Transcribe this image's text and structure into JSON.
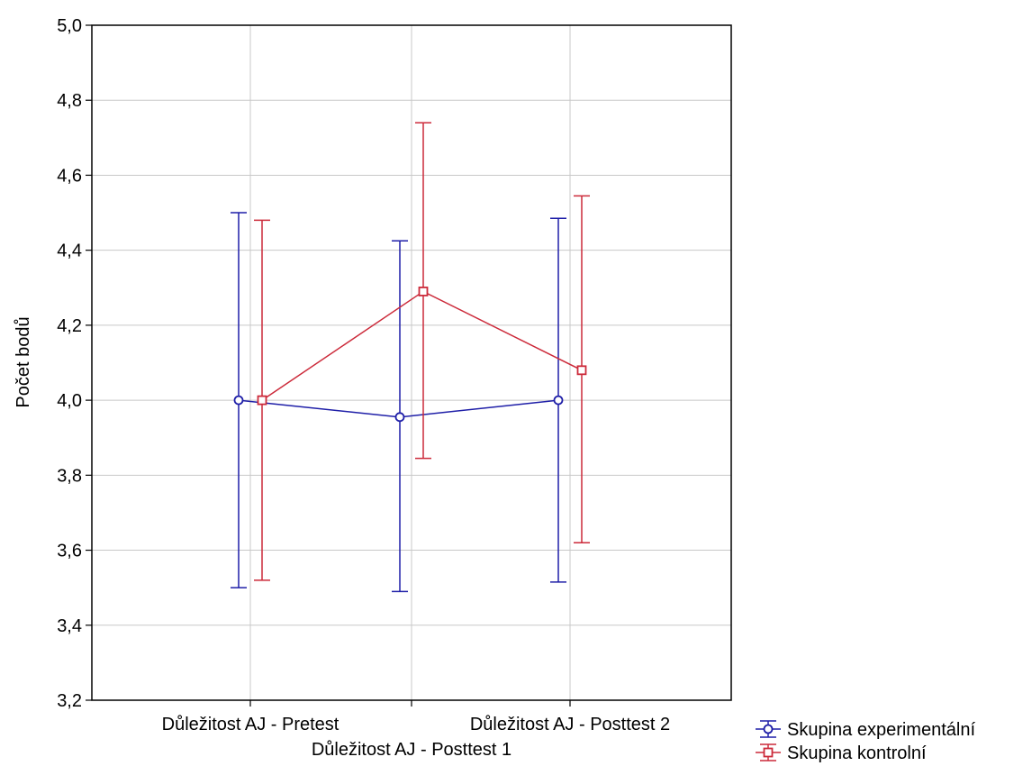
{
  "chart_data": {
    "type": "line",
    "title": "",
    "xlabel": "",
    "ylabel": "Počet bodů",
    "ylim": [
      3.2,
      5.0
    ],
    "yticks": [
      "3,2",
      "3,4",
      "3,6",
      "3,8",
      "4,0",
      "4,2",
      "4,4",
      "4,6",
      "4,8",
      "5,0"
    ],
    "categories": [
      "Důležitost AJ - Pretest",
      "Důležitost AJ - Posttest 1",
      "Důležitost AJ - Posttest 2"
    ],
    "grid": true,
    "legend_position": "bottom-right",
    "series": [
      {
        "name": "Skupina experimentální",
        "color": "#1f1fa8",
        "marker": "circle",
        "values": [
          4.0,
          3.955,
          4.0
        ],
        "lower": [
          3.5,
          3.49,
          3.515
        ],
        "upper": [
          4.5,
          4.425,
          4.485
        ]
      },
      {
        "name": "Skupina kontrolní",
        "color": "#cc2a3a",
        "marker": "square",
        "values": [
          4.0,
          4.29,
          4.08
        ],
        "lower": [
          3.52,
          3.845,
          3.62
        ],
        "upper": [
          4.48,
          4.74,
          4.545
        ]
      }
    ]
  }
}
